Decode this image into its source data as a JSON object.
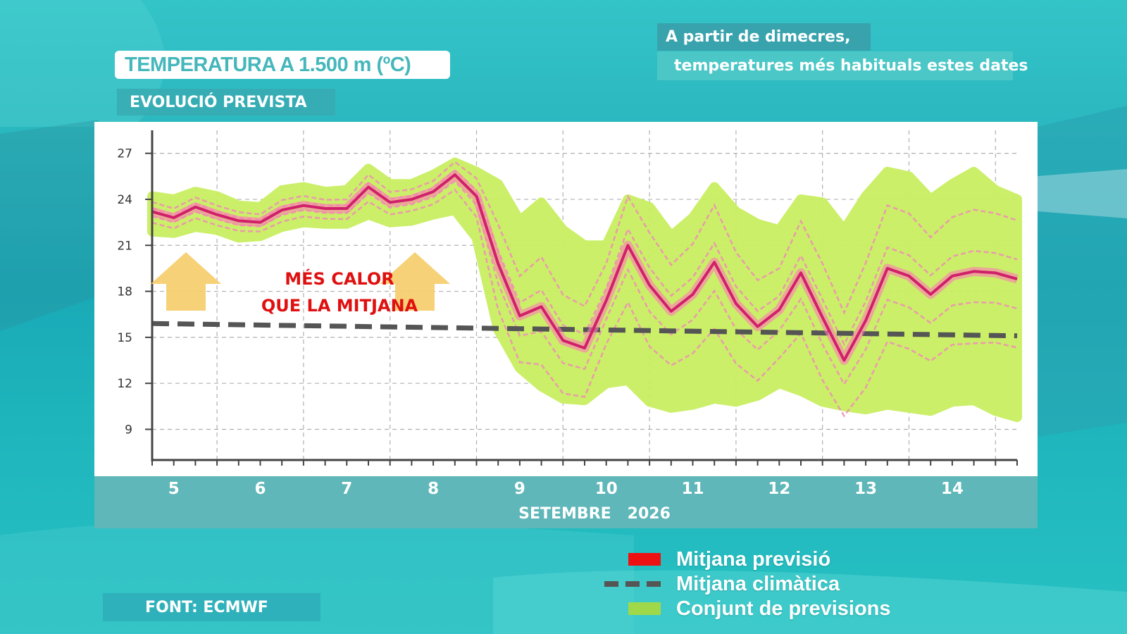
{
  "header": {
    "title": "TEMPERATURA A 1.500 m (ºC)",
    "subtitle": "EVOLUCIÓ PREVISTA",
    "note_line1": "A partir de dimecres,",
    "note_line2": "temperatures més habituals estes dates"
  },
  "source": "FONT: ECMWF",
  "colors": {
    "forecast_mean": "#d0206a",
    "ensemble_fill": "#c9ef60",
    "ensemble_members": "#f08cb8",
    "climate_mean": "#555555",
    "annotation_text": "#e01010",
    "arrow": "#f6cf70",
    "legend_red": "#ee1111",
    "legend_green": "#9fd94a"
  },
  "chart_data": {
    "type": "line",
    "xlabel": "SETEMBRE   2026",
    "ylabel": "",
    "x_ticks": [
      "5",
      "6",
      "7",
      "8",
      "9",
      "10",
      "11",
      "12",
      "13",
      "14"
    ],
    "xlim": [
      4.75,
      14.75
    ],
    "ylim": [
      7,
      28.5
    ],
    "y_ticks": [
      9,
      12,
      15,
      18,
      21,
      24,
      27
    ],
    "grid": true,
    "annotation": {
      "line1": "MÉS CALOR",
      "line2": "QUE LA MITJANA"
    },
    "legend": {
      "placement": "bottom-right",
      "items": [
        {
          "label": "Mitjana previsió",
          "kind": "red-box"
        },
        {
          "label": "Mitjana climàtica",
          "kind": "dashed"
        },
        {
          "label": "Conjunt de previsions",
          "kind": "green-box"
        }
      ]
    },
    "series": [
      {
        "name": "Mitjana previsió",
        "x": [
          4.75,
          5.0,
          5.25,
          5.5,
          5.75,
          6.0,
          6.25,
          6.5,
          6.75,
          7.0,
          7.25,
          7.5,
          7.75,
          8.0,
          8.25,
          8.5,
          8.75,
          9.0,
          9.25,
          9.5,
          9.75,
          10.0,
          10.25,
          10.5,
          10.75,
          11.0,
          11.25,
          11.5,
          11.75,
          12.0,
          12.25,
          12.5,
          12.75,
          13.0,
          13.25,
          13.5,
          13.75,
          14.0,
          14.25,
          14.5,
          14.75
        ],
        "values": [
          23.2,
          22.8,
          23.5,
          23.0,
          22.6,
          22.5,
          23.3,
          23.6,
          23.4,
          23.4,
          24.8,
          23.8,
          24.0,
          24.5,
          25.6,
          24.2,
          19.8,
          16.4,
          17.0,
          14.8,
          14.3,
          17.4,
          21.0,
          18.4,
          16.7,
          17.8,
          19.9,
          17.2,
          15.7,
          16.8,
          19.2,
          16.3,
          13.5,
          16.1,
          19.5,
          19.0,
          17.8,
          19.0,
          19.3,
          19.2,
          18.8
        ]
      },
      {
        "name": "Mitjana climàtica",
        "x": [
          4.75,
          14.75
        ],
        "values": [
          15.9,
          15.1
        ]
      }
    ],
    "ensemble_band": {
      "x": [
        4.75,
        5.0,
        5.25,
        5.5,
        5.75,
        6.0,
        6.25,
        6.5,
        6.75,
        7.0,
        7.25,
        7.5,
        7.75,
        8.0,
        8.25,
        8.5,
        8.75,
        9.0,
        9.25,
        9.5,
        9.75,
        10.0,
        10.25,
        10.5,
        10.75,
        11.0,
        11.25,
        11.5,
        11.75,
        12.0,
        12.25,
        12.5,
        12.75,
        13.0,
        13.25,
        13.5,
        13.75,
        14.0,
        14.25,
        14.5,
        14.75
      ],
      "low": [
        21.9,
        21.8,
        22.2,
        22.0,
        21.5,
        21.6,
        22.2,
        22.5,
        22.4,
        22.4,
        23.0,
        22.5,
        22.6,
        23.0,
        23.3,
        21.5,
        15.5,
        13.0,
        11.8,
        11.0,
        10.9,
        12.0,
        12.2,
        10.8,
        10.4,
        10.6,
        11.0,
        10.8,
        11.2,
        12.0,
        11.5,
        10.8,
        10.5,
        10.3,
        10.6,
        10.4,
        10.2,
        10.8,
        10.9,
        10.2,
        9.8
      ],
      "high": [
        24.2,
        24.0,
        24.5,
        24.2,
        23.6,
        23.5,
        24.6,
        24.8,
        24.5,
        24.6,
        26.0,
        25.0,
        25.0,
        25.6,
        26.4,
        25.8,
        25.0,
        22.6,
        23.8,
        22.0,
        21.0,
        21.0,
        24.0,
        23.5,
        21.6,
        22.8,
        24.8,
        23.2,
        22.4,
        22.0,
        24.0,
        23.8,
        22.0,
        24.2,
        25.8,
        25.5,
        24.0,
        25.0,
        25.8,
        24.6,
        24.0
      ]
    }
  }
}
